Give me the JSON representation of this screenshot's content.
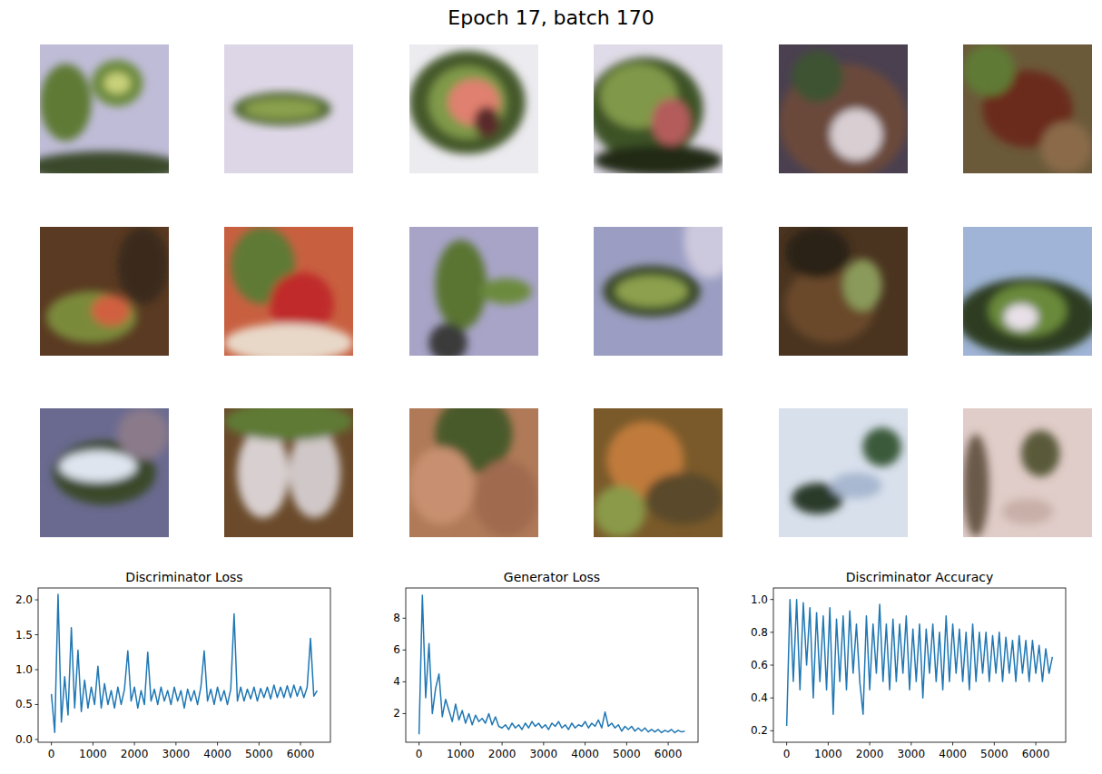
{
  "title": "Epoch 17, batch 170",
  "chart_data": [
    {
      "type": "line",
      "title": "Discriminator Loss",
      "color": "#1f77b4",
      "x": [
        0,
        80,
        160,
        240,
        320,
        400,
        480,
        560,
        640,
        720,
        800,
        880,
        960,
        1040,
        1120,
        1200,
        1280,
        1360,
        1440,
        1520,
        1600,
        1680,
        1760,
        1840,
        1920,
        2000,
        2080,
        2160,
        2240,
        2320,
        2400,
        2480,
        2560,
        2640,
        2720,
        2800,
        2880,
        2960,
        3040,
        3120,
        3200,
        3280,
        3360,
        3440,
        3520,
        3600,
        3680,
        3760,
        3840,
        3920,
        4000,
        4080,
        4160,
        4240,
        4320,
        4400,
        4480,
        4560,
        4640,
        4720,
        4800,
        4880,
        4960,
        5040,
        5120,
        5200,
        5280,
        5360,
        5440,
        5520,
        5600,
        5680,
        5760,
        5840,
        5920,
        6000,
        6080,
        6160,
        6240,
        6320,
        6400
      ],
      "values": [
        0.65,
        0.1,
        2.08,
        0.25,
        0.9,
        0.35,
        1.6,
        0.45,
        1.28,
        0.4,
        0.85,
        0.45,
        0.75,
        0.5,
        1.05,
        0.45,
        0.8,
        0.5,
        0.7,
        0.45,
        0.75,
        0.5,
        0.72,
        1.27,
        0.55,
        0.75,
        0.45,
        0.7,
        0.5,
        1.25,
        0.55,
        0.72,
        0.5,
        0.75,
        0.55,
        0.7,
        0.5,
        0.75,
        0.55,
        0.7,
        0.45,
        0.72,
        0.55,
        0.7,
        0.5,
        0.75,
        1.27,
        0.55,
        0.72,
        0.5,
        0.75,
        0.55,
        0.7,
        0.5,
        0.72,
        1.8,
        0.55,
        0.75,
        0.55,
        0.72,
        0.58,
        0.75,
        0.55,
        0.73,
        0.6,
        0.75,
        0.58,
        0.78,
        0.6,
        0.75,
        0.6,
        0.77,
        0.6,
        0.78,
        0.62,
        0.76,
        0.6,
        0.75,
        1.45,
        0.62,
        0.7
      ],
      "xlim": [
        -320,
        6720
      ],
      "ylim": [
        -0.04,
        2.17
      ],
      "xticks": [
        0,
        1000,
        2000,
        3000,
        4000,
        5000,
        6000
      ],
      "yticks": [
        {
          "value": 0,
          "label": "0.0"
        },
        {
          "value": 0.5,
          "label": "0.5"
        },
        {
          "value": 1,
          "label": "1.0"
        },
        {
          "value": 1.5,
          "label": "1.5"
        },
        {
          "value": 2,
          "label": "2.0"
        }
      ]
    },
    {
      "type": "line",
      "title": "Generator Loss",
      "color": "#1f77b4",
      "x": [
        0,
        80,
        160,
        240,
        320,
        400,
        480,
        560,
        640,
        720,
        800,
        880,
        960,
        1040,
        1120,
        1200,
        1280,
        1360,
        1440,
        1520,
        1600,
        1680,
        1760,
        1840,
        1920,
        2000,
        2080,
        2160,
        2240,
        2320,
        2400,
        2480,
        2560,
        2640,
        2720,
        2800,
        2880,
        2960,
        3040,
        3120,
        3200,
        3280,
        3360,
        3440,
        3520,
        3600,
        3680,
        3760,
        3840,
        3920,
        4000,
        4080,
        4160,
        4240,
        4320,
        4400,
        4480,
        4560,
        4640,
        4720,
        4800,
        4880,
        4960,
        5040,
        5120,
        5200,
        5280,
        5360,
        5440,
        5520,
        5600,
        5680,
        5760,
        5840,
        5920,
        6000,
        6080,
        6160,
        6240,
        6320,
        6400
      ],
      "values": [
        0.7,
        9.45,
        3.0,
        6.4,
        2.0,
        3.6,
        4.5,
        1.8,
        2.9,
        2.2,
        1.5,
        2.6,
        1.6,
        2.2,
        1.4,
        2.0,
        1.3,
        1.9,
        1.5,
        1.7,
        1.4,
        2.0,
        1.3,
        1.8,
        1.2,
        1.1,
        1.3,
        1.0,
        1.4,
        1.1,
        1.3,
        1.0,
        1.4,
        1.1,
        1.5,
        1.2,
        1.4,
        1.1,
        1.3,
        1.0,
        1.4,
        1.2,
        1.5,
        1.1,
        1.3,
        1.0,
        1.4,
        1.1,
        1.3,
        1.2,
        1.5,
        1.1,
        1.4,
        1.2,
        1.6,
        1.1,
        2.1,
        1.2,
        1.4,
        1.1,
        1.3,
        0.9,
        1.2,
        1.0,
        1.2,
        0.9,
        1.1,
        0.9,
        1.1,
        0.85,
        1.0,
        0.85,
        1.0,
        0.8,
        0.95,
        0.85,
        1.0,
        0.8,
        0.95,
        0.85,
        0.9
      ],
      "xlim": [
        -320,
        6720
      ],
      "ylim": [
        0.2,
        9.9
      ],
      "xticks": [
        0,
        1000,
        2000,
        3000,
        4000,
        5000,
        6000
      ],
      "yticks": [
        2,
        4,
        6,
        8
      ]
    },
    {
      "type": "line",
      "title": "Discriminator Accuracy",
      "color": "#1f77b4",
      "x": [
        0,
        80,
        160,
        240,
        320,
        400,
        480,
        560,
        640,
        720,
        800,
        880,
        960,
        1040,
        1120,
        1200,
        1280,
        1360,
        1440,
        1520,
        1600,
        1680,
        1760,
        1840,
        1920,
        2000,
        2080,
        2160,
        2240,
        2320,
        2400,
        2480,
        2560,
        2640,
        2720,
        2800,
        2880,
        2960,
        3040,
        3120,
        3200,
        3280,
        3360,
        3440,
        3520,
        3600,
        3680,
        3760,
        3840,
        3920,
        4000,
        4080,
        4160,
        4240,
        4320,
        4400,
        4480,
        4560,
        4640,
        4720,
        4800,
        4880,
        4960,
        5040,
        5120,
        5200,
        5280,
        5360,
        5440,
        5520,
        5600,
        5680,
        5760,
        5840,
        5920,
        6000,
        6080,
        6160,
        6240,
        6320,
        6400
      ],
      "values": [
        0.23,
        1.0,
        0.5,
        1.0,
        0.45,
        0.98,
        0.6,
        0.95,
        0.4,
        0.92,
        0.5,
        0.9,
        0.45,
        0.95,
        0.3,
        0.88,
        0.5,
        0.9,
        0.45,
        0.93,
        0.55,
        0.85,
        0.5,
        0.3,
        0.9,
        0.45,
        0.85,
        0.55,
        0.97,
        0.5,
        0.85,
        0.45,
        0.88,
        0.5,
        0.85,
        0.55,
        0.9,
        0.45,
        0.82,
        0.5,
        0.85,
        0.4,
        0.82,
        0.55,
        0.85,
        0.5,
        0.8,
        0.45,
        0.9,
        0.5,
        0.85,
        0.55,
        0.82,
        0.5,
        0.8,
        0.45,
        0.85,
        0.5,
        0.8,
        0.55,
        0.8,
        0.5,
        0.78,
        0.55,
        0.8,
        0.5,
        0.77,
        0.55,
        0.75,
        0.5,
        0.78,
        0.55,
        0.75,
        0.5,
        0.75,
        0.55,
        0.72,
        0.5,
        0.7,
        0.55,
        0.65
      ],
      "xlim": [
        -320,
        6720
      ],
      "ylim": [
        0.13,
        1.07
      ],
      "xticks": [
        0,
        1000,
        2000,
        3000,
        4000,
        5000,
        6000
      ],
      "yticks": [
        {
          "value": 0.2,
          "label": "0.2"
        },
        {
          "value": 0.4,
          "label": "0.4"
        },
        {
          "value": 0.6,
          "label": "0.6"
        },
        {
          "value": 0.8,
          "label": "0.8"
        },
        {
          "value": 1,
          "label": "1.0"
        }
      ]
    }
  ]
}
